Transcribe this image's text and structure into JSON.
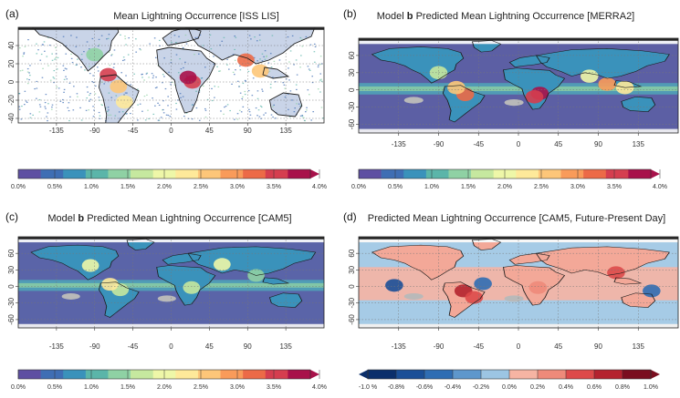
{
  "panels": [
    {
      "letter": "(a)",
      "title_pre": "Mean Lightning Occurrence [ISS LIS]",
      "title_bold": "",
      "title_post": "",
      "lat_ticks": [
        "40",
        "20",
        "0",
        "-20",
        "-40"
      ],
      "lon_ticks": [
        "-135",
        "-90",
        "-45",
        "0",
        "45",
        "90",
        "135"
      ],
      "colorbar": "sequential"
    },
    {
      "letter": "(b)",
      "title_pre": "Model ",
      "title_bold": "b",
      "title_post": " Predicted Mean Lightning Occurrence [MERRA2]",
      "lat_ticks": [
        "60",
        "30",
        "0",
        "-30",
        "-60"
      ],
      "lon_ticks": [
        "-135",
        "-90",
        "-45",
        "0",
        "45",
        "90",
        "135"
      ],
      "colorbar": "sequential"
    },
    {
      "letter": "(c)",
      "title_pre": "Model ",
      "title_bold": "b",
      "title_post": " Predicted Mean Lightning Occurrence [CAM5]",
      "lat_ticks": [
        "60",
        "30",
        "0",
        "-30",
        "-60"
      ],
      "lon_ticks": [
        "-135",
        "-90",
        "-45",
        "0",
        "45",
        "90",
        "135"
      ],
      "colorbar": "sequential"
    },
    {
      "letter": "(d)",
      "title_pre": "Predicted Mean Lightning Occurrence [CAM5, Future-Present Day]",
      "title_bold": "",
      "title_post": "",
      "lat_ticks": [
        "60",
        "30",
        "0",
        "-30",
        "-60"
      ],
      "lon_ticks": [
        "-135",
        "-90",
        "-45",
        "0",
        "45",
        "90",
        "135"
      ],
      "colorbar": "diverging"
    }
  ],
  "colorbars": {
    "sequential": {
      "labels": [
        "0.0%",
        "0.5%",
        "1.0%",
        "1.5%",
        "2.0%",
        "2.5%",
        "3.0%",
        "3.5%",
        "4.0%"
      ],
      "colors": [
        "#5e4fa2",
        "#3f6eb4",
        "#3a92bb",
        "#5bb5a9",
        "#8fd1a4",
        "#c6e89f",
        "#eef7a8",
        "#fee99a",
        "#fdc679",
        "#f99b5a",
        "#ec6a47",
        "#d53e4f",
        "#a8114a"
      ]
    },
    "diverging": {
      "labels": [
        "-1.0 %",
        "-0.8%",
        "-0.6%",
        "-0.4%",
        "-0.2%",
        "0.0%",
        "0.2%",
        "0.4%",
        "0.6%",
        "0.8%",
        "1.0%"
      ],
      "colors": [
        "#0b2f6b",
        "#1b4f97",
        "#2f6db3",
        "#5e97cc",
        "#9cc5e3",
        "#f6b4a3",
        "#ee8a7a",
        "#dd4a4a",
        "#b4232f",
        "#7a0e1f"
      ]
    }
  }
}
